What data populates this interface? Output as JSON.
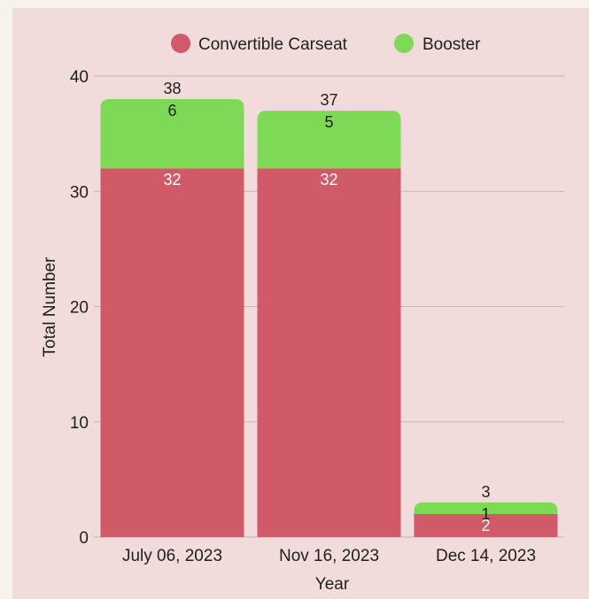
{
  "chart_data": {
    "type": "bar",
    "stacked": true,
    "title": "",
    "xlabel": "Year",
    "ylabel": "Total Number",
    "categories": [
      "July 06, 2023",
      "Nov 16, 2023",
      "Dec 14, 2023"
    ],
    "series": [
      {
        "name": "Convertible Carseat",
        "values": [
          32,
          32,
          2
        ],
        "color": "#d05a68",
        "label_color": "#ffffff"
      },
      {
        "name": "Booster",
        "values": [
          6,
          5,
          1
        ],
        "color": "#7ed957",
        "label_color": "#1e1e1e"
      }
    ],
    "totals": [
      38,
      37,
      3
    ],
    "ylim": [
      0,
      40
    ],
    "yticks": [
      0,
      10,
      20,
      30,
      40
    ],
    "grid": true,
    "legend_position": "top"
  }
}
